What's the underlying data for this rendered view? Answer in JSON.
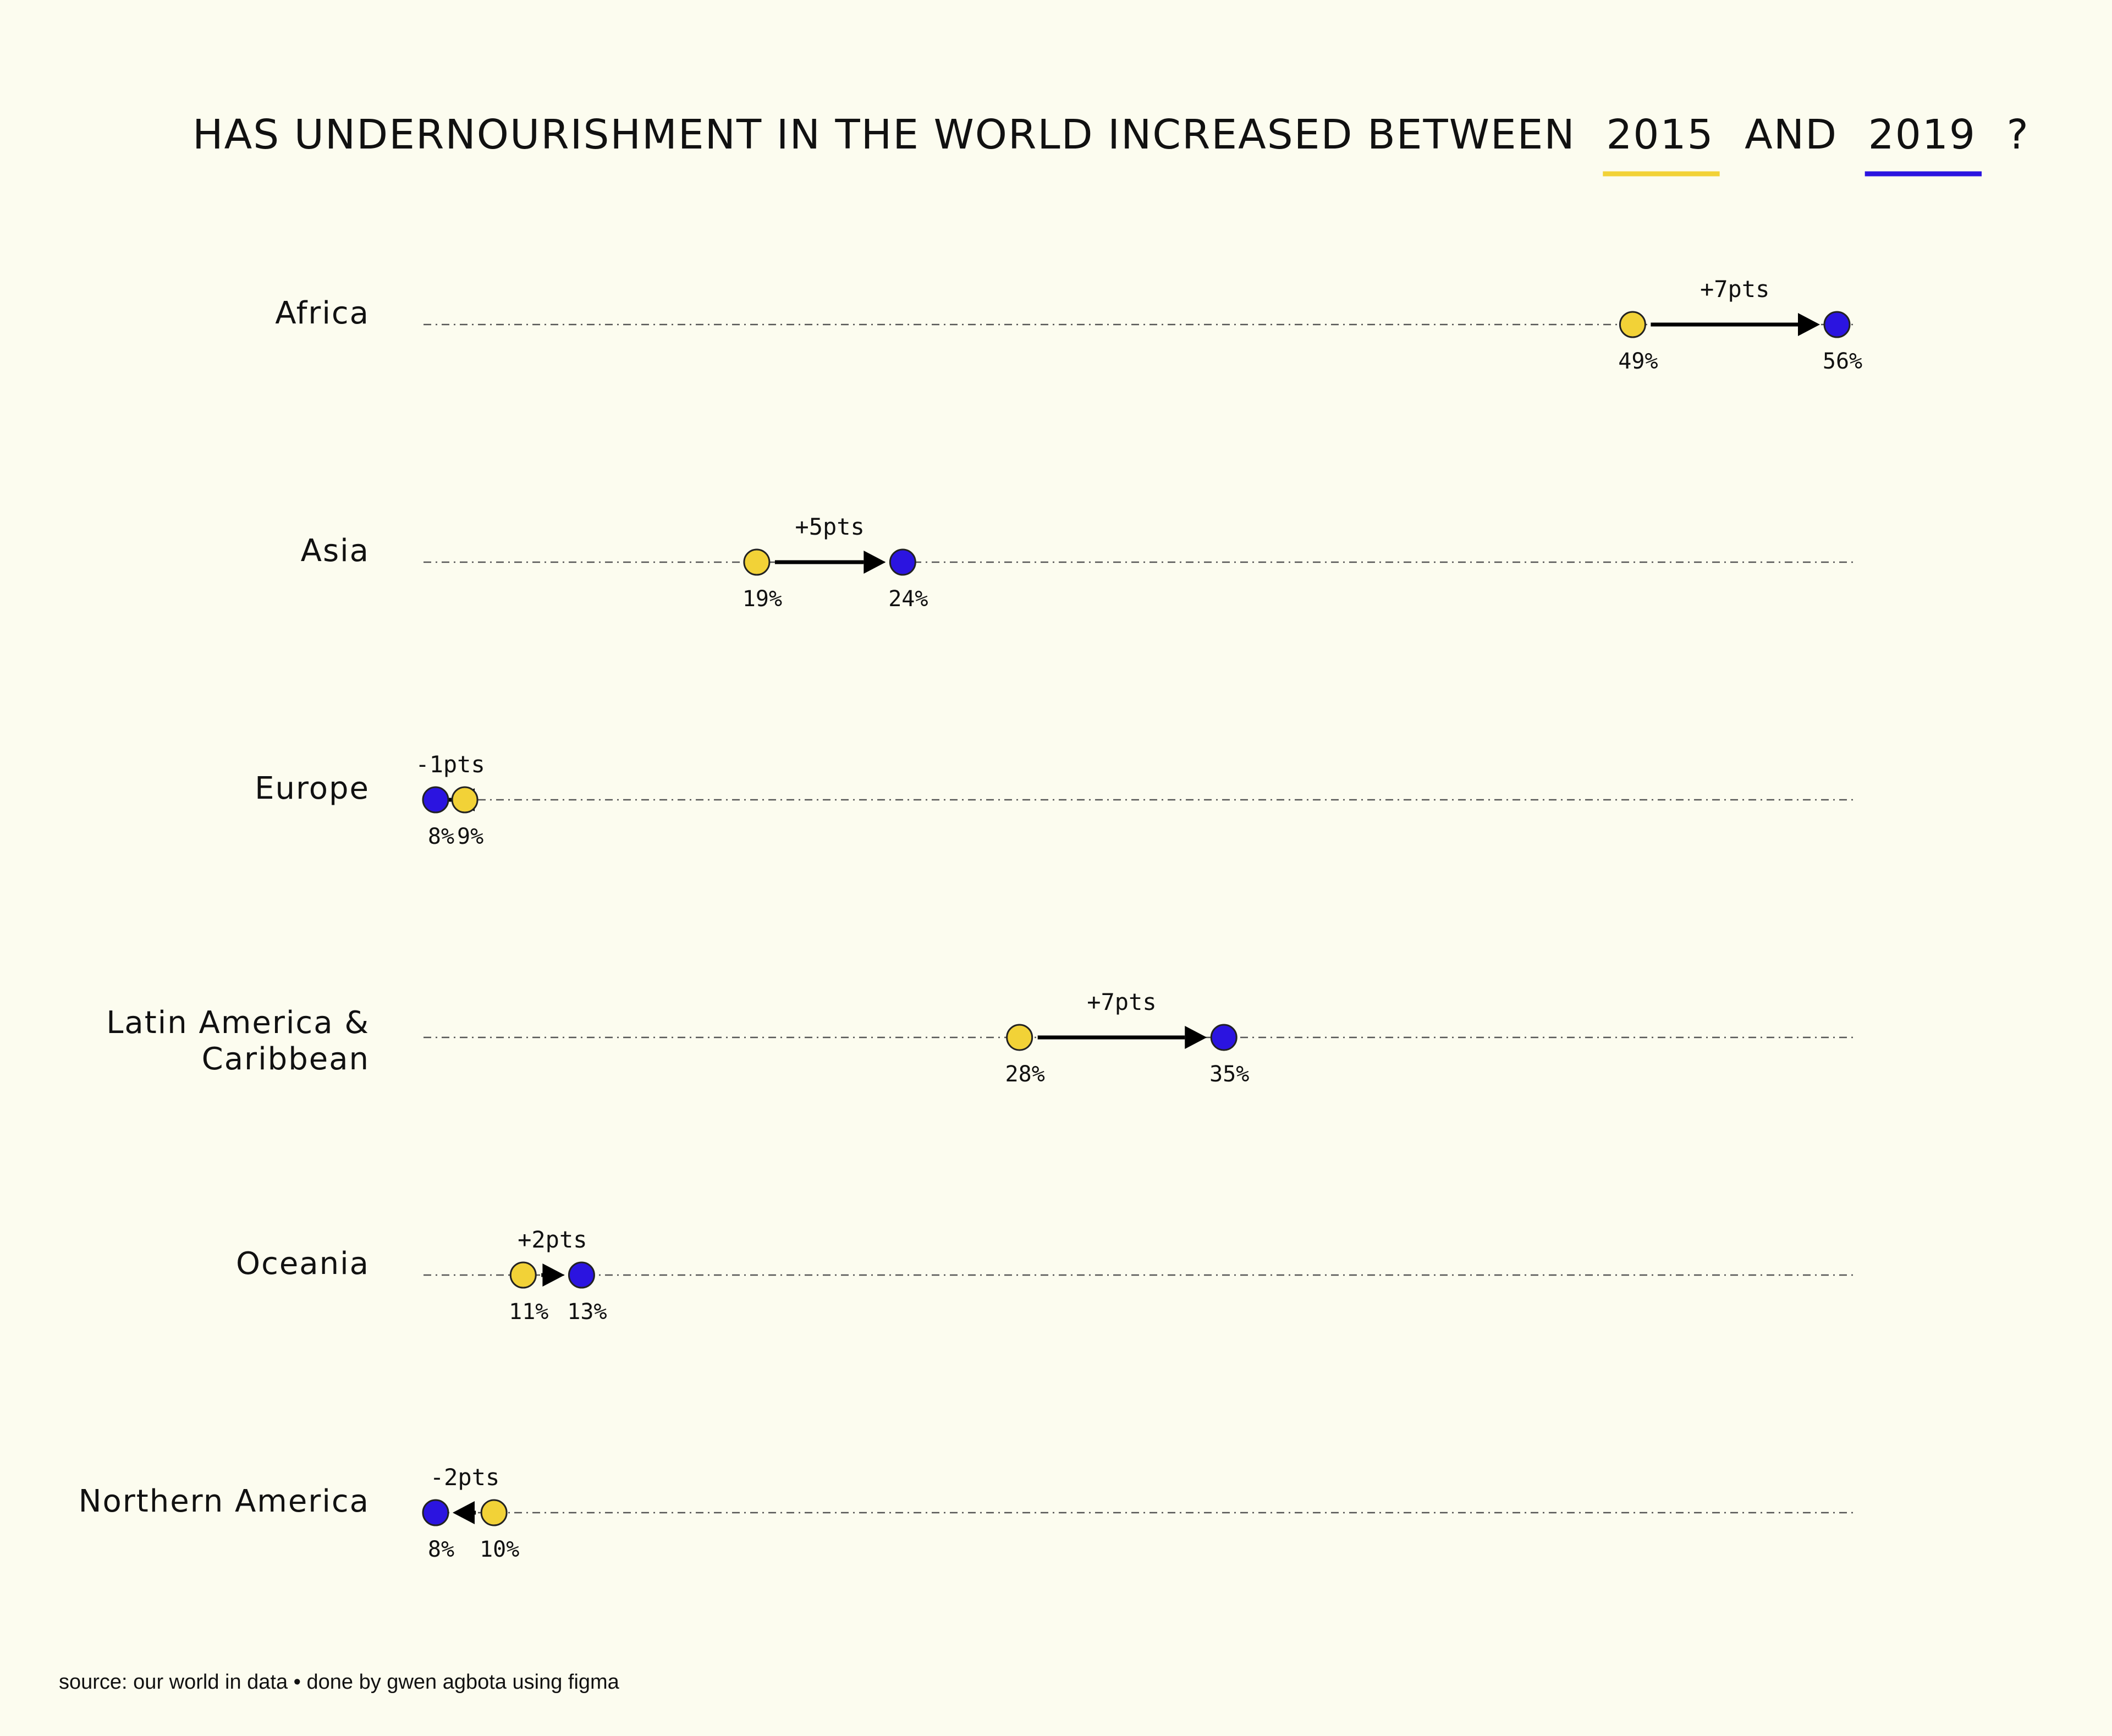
{
  "title": {
    "before": "HAS UNDERNOURISHMENT IN THE WORLD INCREASED BETWEEN",
    "year_a": "2015",
    "middle": "AND",
    "year_b": "2019",
    "after": "?"
  },
  "source": "source: our world in data • done by gwen agbota using figma",
  "colors": {
    "year_2015": "#f2d237",
    "year_2019": "#2b14e0",
    "background": "#fcfcef",
    "text": "#111111"
  },
  "chart_data": {
    "type": "dumbbell",
    "title": "HAS UNDERNOURISHMENT IN THE WORLD INCREASED BETWEEN 2015 AND 2019 ?",
    "unit": "%",
    "xlim": [
      8,
      56
    ],
    "grid": false,
    "series": [
      {
        "name": "2015",
        "color": "#f2d237"
      },
      {
        "name": "2019",
        "color": "#2b14e0"
      }
    ],
    "rows": [
      {
        "region_lines": [
          "Africa"
        ],
        "v2015": 49,
        "v2019": 56,
        "label2015": "49%",
        "label2019": "56%",
        "delta": "+7pts"
      },
      {
        "region_lines": [
          "Asia"
        ],
        "v2015": 19,
        "v2019": 24,
        "label2015": "19%",
        "label2019": "24%",
        "delta": "+5pts"
      },
      {
        "region_lines": [
          "Europe"
        ],
        "v2015": 9,
        "v2019": 8,
        "label2015": "9%",
        "label2019": "8%",
        "delta": "-1pts"
      },
      {
        "region_lines": [
          "Latin America &",
          "Caribbean"
        ],
        "v2015": 28,
        "v2019": 35,
        "label2015": "28%",
        "label2019": "35%",
        "delta": "+7pts"
      },
      {
        "region_lines": [
          "Oceania"
        ],
        "v2015": 11,
        "v2019": 13,
        "label2015": "11%",
        "label2019": "13%",
        "delta": "+2pts"
      },
      {
        "region_lines": [
          "Northern America"
        ],
        "v2015": 10,
        "v2019": 8,
        "label2015": "10%",
        "label2019": "8%",
        "delta": "-2pts"
      }
    ]
  }
}
